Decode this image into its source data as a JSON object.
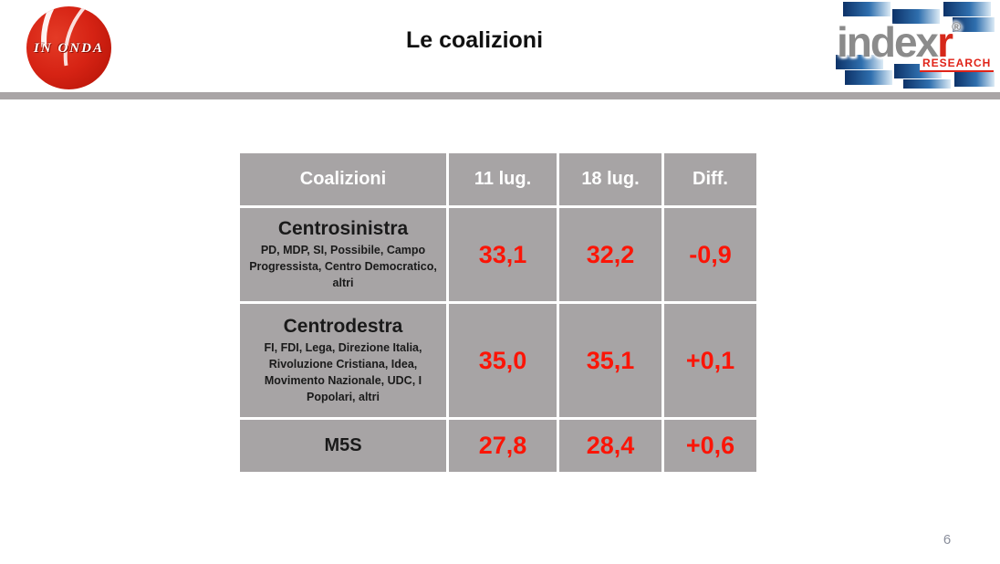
{
  "slide": {
    "title": "Le coalizioni",
    "page_number": "6"
  },
  "logos": {
    "inonda_text": "IN ONDA",
    "index_word": "index",
    "index_r": "r",
    "index_registered": "®",
    "index_research": "RESEARCH"
  },
  "colors": {
    "table_cell_gray": "#a7a4a5",
    "divider_gray": "#a9a5a6",
    "value_red": "#fb1507",
    "header_text_white": "#ffffff",
    "index_blue_dark": "#0d3268",
    "inonda_red": "#d62314"
  },
  "table": {
    "headers": [
      "Coalizioni",
      "11 lug.",
      "18 lug.",
      "Diff."
    ],
    "rows": [
      {
        "name": "Centrosinistra",
        "parties": "PD, MDP, SI, Possibile, Campo Progressista, Centro Democratico, altri",
        "val_11": "33,1",
        "val_18": "32,2",
        "diff": "-0,9"
      },
      {
        "name": "Centrodestra",
        "parties": "FI, FDI, Lega, Direzione Italia, Rivoluzione Cristiana, Idea, Movimento Nazionale, UDC, I Popolari, altri",
        "val_11": "35,0",
        "val_18": "35,1",
        "diff": "+0,1"
      },
      {
        "name": "M5S",
        "parties": "",
        "val_11": "27,8",
        "val_18": "28,4",
        "diff": "+0,6"
      }
    ]
  },
  "chart_data": {
    "type": "table",
    "title": "Le coalizioni",
    "columns": [
      "Coalizioni",
      "11 lug.",
      "18 lug.",
      "Diff."
    ],
    "rows": [
      [
        "Centrosinistra (PD, MDP, SI, Possibile, Campo Progressista, Centro Democratico, altri)",
        33.1,
        32.2,
        -0.9
      ],
      [
        "Centrodestra (FI, FDI, Lega, Direzione Italia, Rivoluzione Cristiana, Idea, Movimento Nazionale, UDC, I Popolari, altri)",
        35.0,
        35.1,
        0.1
      ],
      [
        "M5S",
        27.8,
        28.4,
        0.6
      ]
    ]
  }
}
